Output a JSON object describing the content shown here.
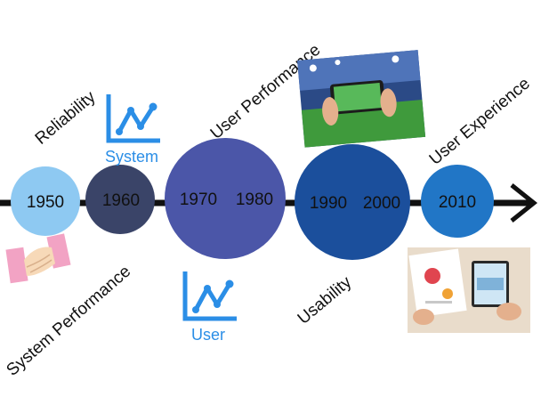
{
  "labels": {
    "reliability": "Reliability",
    "system_performance": "System Performance",
    "user_performance": "User Performance",
    "usability": "Usability",
    "user_experience": "User Experience"
  },
  "icons": {
    "system": {
      "label": "System",
      "icon": "line-chart-icon"
    },
    "user": {
      "label": "User",
      "icon": "line-chart-icon"
    }
  },
  "circles": [
    {
      "id": "c1950",
      "years": [
        "1950"
      ],
      "color": "#8ec9f2"
    },
    {
      "id": "c1960",
      "years": [
        "1960"
      ],
      "color": "#3a4468"
    },
    {
      "id": "c1970",
      "years": [
        "1970",
        "1980"
      ],
      "color": "#4b56a8"
    },
    {
      "id": "c1990",
      "years": [
        "1990",
        "2000"
      ],
      "color": "#1b4f9c"
    },
    {
      "id": "c2010",
      "years": [
        "2010"
      ],
      "color": "#2176c6"
    }
  ],
  "colors": {
    "axis": "#111111",
    "icon_blue": "#2b8ee6",
    "text": "#111111"
  }
}
